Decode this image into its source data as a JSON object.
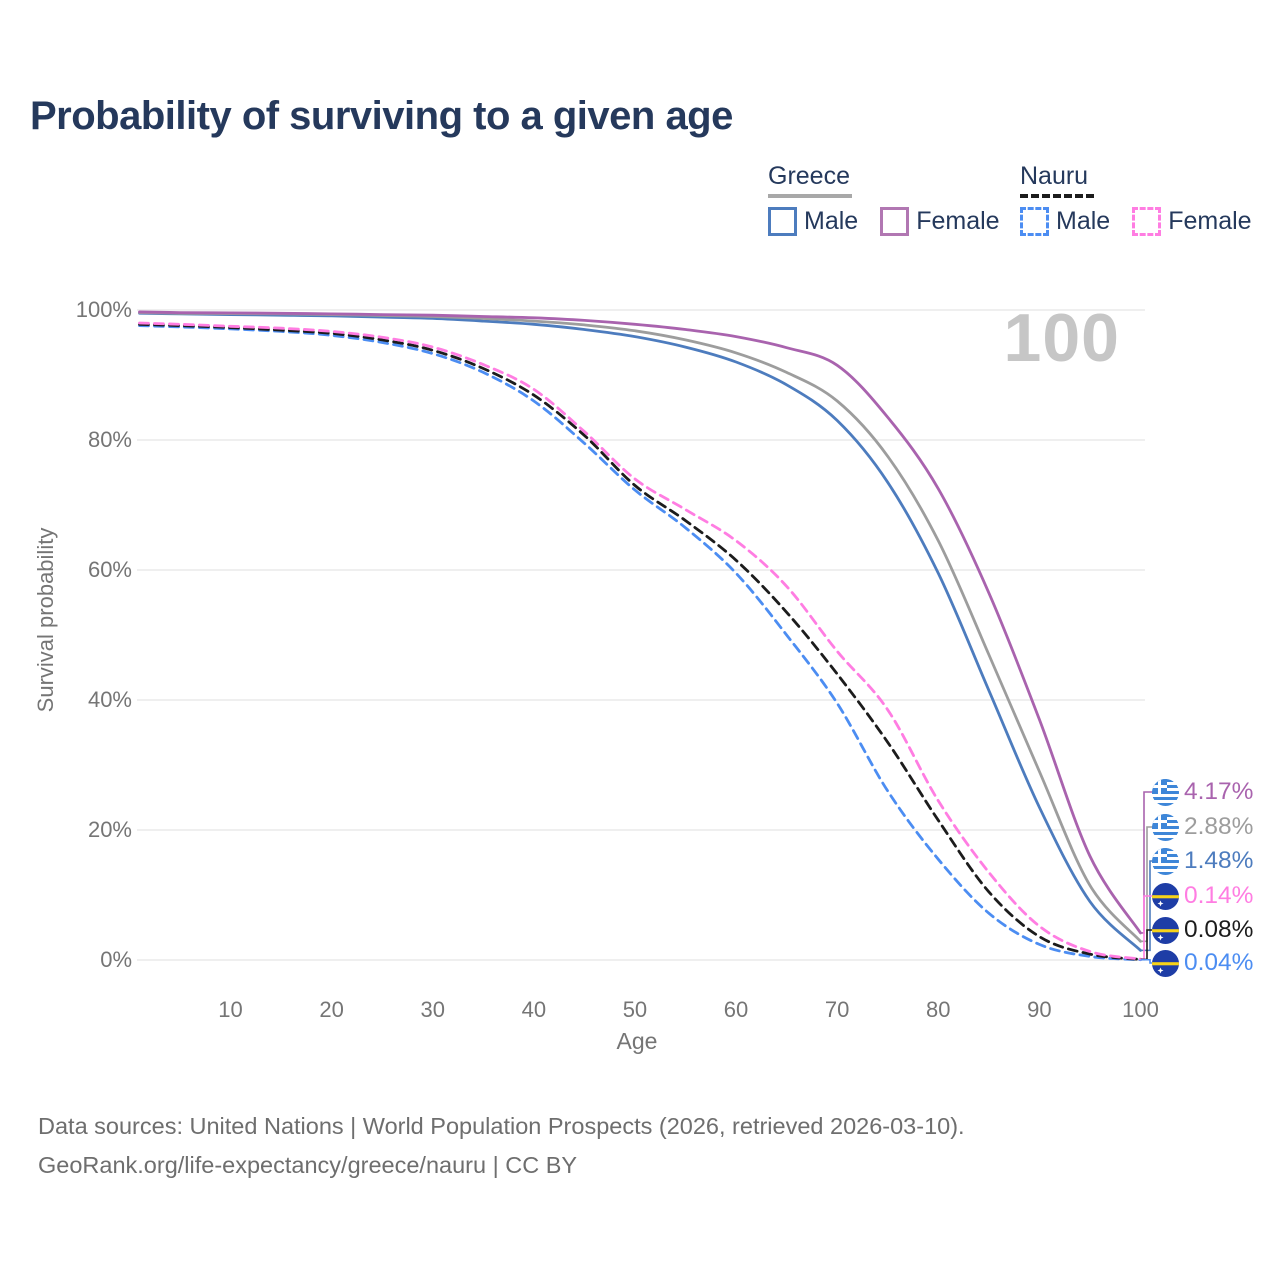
{
  "title": "Probability of surviving to a given age",
  "watermark": "100",
  "legend": {
    "groups": [
      {
        "name": "Greece",
        "underline_style": "solid",
        "underline_color": "#a8a8a8",
        "items": [
          {
            "label": "Male",
            "color": "#4d7cbe",
            "dash": false
          },
          {
            "label": "Female",
            "color": "#b177b2",
            "dash": false
          }
        ]
      },
      {
        "name": "Nauru",
        "underline_style": "dashed",
        "underline_color": "#1c1c1c",
        "items": [
          {
            "label": "Male",
            "color": "#4c8df2",
            "dash": true
          },
          {
            "label": "Female",
            "color": "#ff7de2",
            "dash": true
          }
        ]
      }
    ]
  },
  "chart_data": {
    "type": "line",
    "title": "Probability of surviving to a given age",
    "xlabel": "Age",
    "ylabel": "Survival probability",
    "xlim": [
      1,
      100
    ],
    "ylim": [
      0,
      100
    ],
    "grid": "horizontal",
    "x_ticks": [
      10,
      20,
      30,
      40,
      50,
      60,
      70,
      80,
      90,
      100
    ],
    "y_ticks": [
      {
        "value": 100,
        "label": "100%"
      },
      {
        "value": 80,
        "label": "80%"
      },
      {
        "value": 60,
        "label": "60%"
      },
      {
        "value": 40,
        "label": "40%"
      },
      {
        "value": 20,
        "label": "20%"
      },
      {
        "value": 0,
        "label": "0%"
      }
    ],
    "ages": [
      1,
      5,
      10,
      15,
      20,
      25,
      30,
      35,
      40,
      45,
      50,
      55,
      60,
      65,
      70,
      75,
      80,
      85,
      90,
      95,
      100
    ],
    "series": [
      {
        "id": "greece-male",
        "name": "Greece Male",
        "color": "#4d7cbe",
        "dash": false,
        "values": [
          99.5,
          99.4,
          99.3,
          99.2,
          99.1,
          98.9,
          98.7,
          98.3,
          97.8,
          97.0,
          95.9,
          94.3,
          92.0,
          88.5,
          83.0,
          73.5,
          59.5,
          41.5,
          23.5,
          9.0,
          1.48
        ]
      },
      {
        "id": "greece-both",
        "name": "Greece (both sexes)",
        "color": "#9d9d9d",
        "dash": false,
        "values": [
          99.6,
          99.5,
          99.45,
          99.4,
          99.3,
          99.15,
          99.0,
          98.7,
          98.3,
          97.7,
          96.8,
          95.4,
          93.4,
          90.4,
          86.0,
          77.5,
          64.5,
          47.0,
          29.0,
          11.5,
          2.88
        ]
      },
      {
        "id": "greece-female",
        "name": "Greece Female",
        "color": "#a963ae",
        "dash": false,
        "values": [
          99.7,
          99.6,
          99.55,
          99.5,
          99.4,
          99.3,
          99.2,
          99.0,
          98.8,
          98.4,
          97.8,
          97.0,
          95.9,
          94.2,
          91.5,
          83.5,
          72.5,
          56.5,
          37.0,
          16.0,
          4.17
        ]
      },
      {
        "id": "nauru-male",
        "name": "Nauru Male",
        "color": "#4c8df2",
        "dash": true,
        "values": [
          97.6,
          97.4,
          97.1,
          96.7,
          96.1,
          95.0,
          93.3,
          90.4,
          86.0,
          79.5,
          72.3,
          66.5,
          59.5,
          50.0,
          39.5,
          26.0,
          15.5,
          7.2,
          2.4,
          0.55,
          0.04
        ]
      },
      {
        "id": "nauru-both",
        "name": "Nauru (both sexes)",
        "color": "#1c1c1c",
        "dash": true,
        "values": [
          97.8,
          97.6,
          97.3,
          96.9,
          96.4,
          95.4,
          93.8,
          91.0,
          86.9,
          80.7,
          73.0,
          67.6,
          61.5,
          53.5,
          44.0,
          33.5,
          21.5,
          10.5,
          3.6,
          0.9,
          0.08
        ]
      },
      {
        "id": "nauru-female",
        "name": "Nauru Female",
        "color": "#ff7de2",
        "dash": true,
        "values": [
          98.0,
          97.8,
          97.5,
          97.2,
          96.7,
          95.8,
          94.3,
          91.6,
          87.8,
          81.3,
          74.0,
          69.3,
          64.5,
          57.5,
          47.5,
          38.5,
          24.5,
          13.5,
          5.2,
          1.3,
          0.14
        ]
      }
    ],
    "end_labels": [
      {
        "label": "4.17%",
        "color": "#a963ae",
        "flag": "greece",
        "series": "greece-female"
      },
      {
        "label": "2.88%",
        "color": "#9d9d9d",
        "flag": "greece",
        "series": "greece-both"
      },
      {
        "label": "1.48%",
        "color": "#4d7cbe",
        "flag": "greece",
        "series": "greece-male"
      },
      {
        "label": "0.14%",
        "color": "#ff7de2",
        "flag": "nauru",
        "series": "nauru-female"
      },
      {
        "label": "0.08%",
        "color": "#1c1c1c",
        "flag": "nauru",
        "series": "nauru-both"
      },
      {
        "label": "0.04%",
        "color": "#4c8df2",
        "flag": "nauru",
        "series": "nauru-male"
      }
    ]
  },
  "footer": {
    "line1": "Data sources: United Nations | World Population Prospects (2026, retrieved 2026-03-10).",
    "line2": "GeoRank.org/life-expectancy/greece/nauru | CC BY"
  }
}
